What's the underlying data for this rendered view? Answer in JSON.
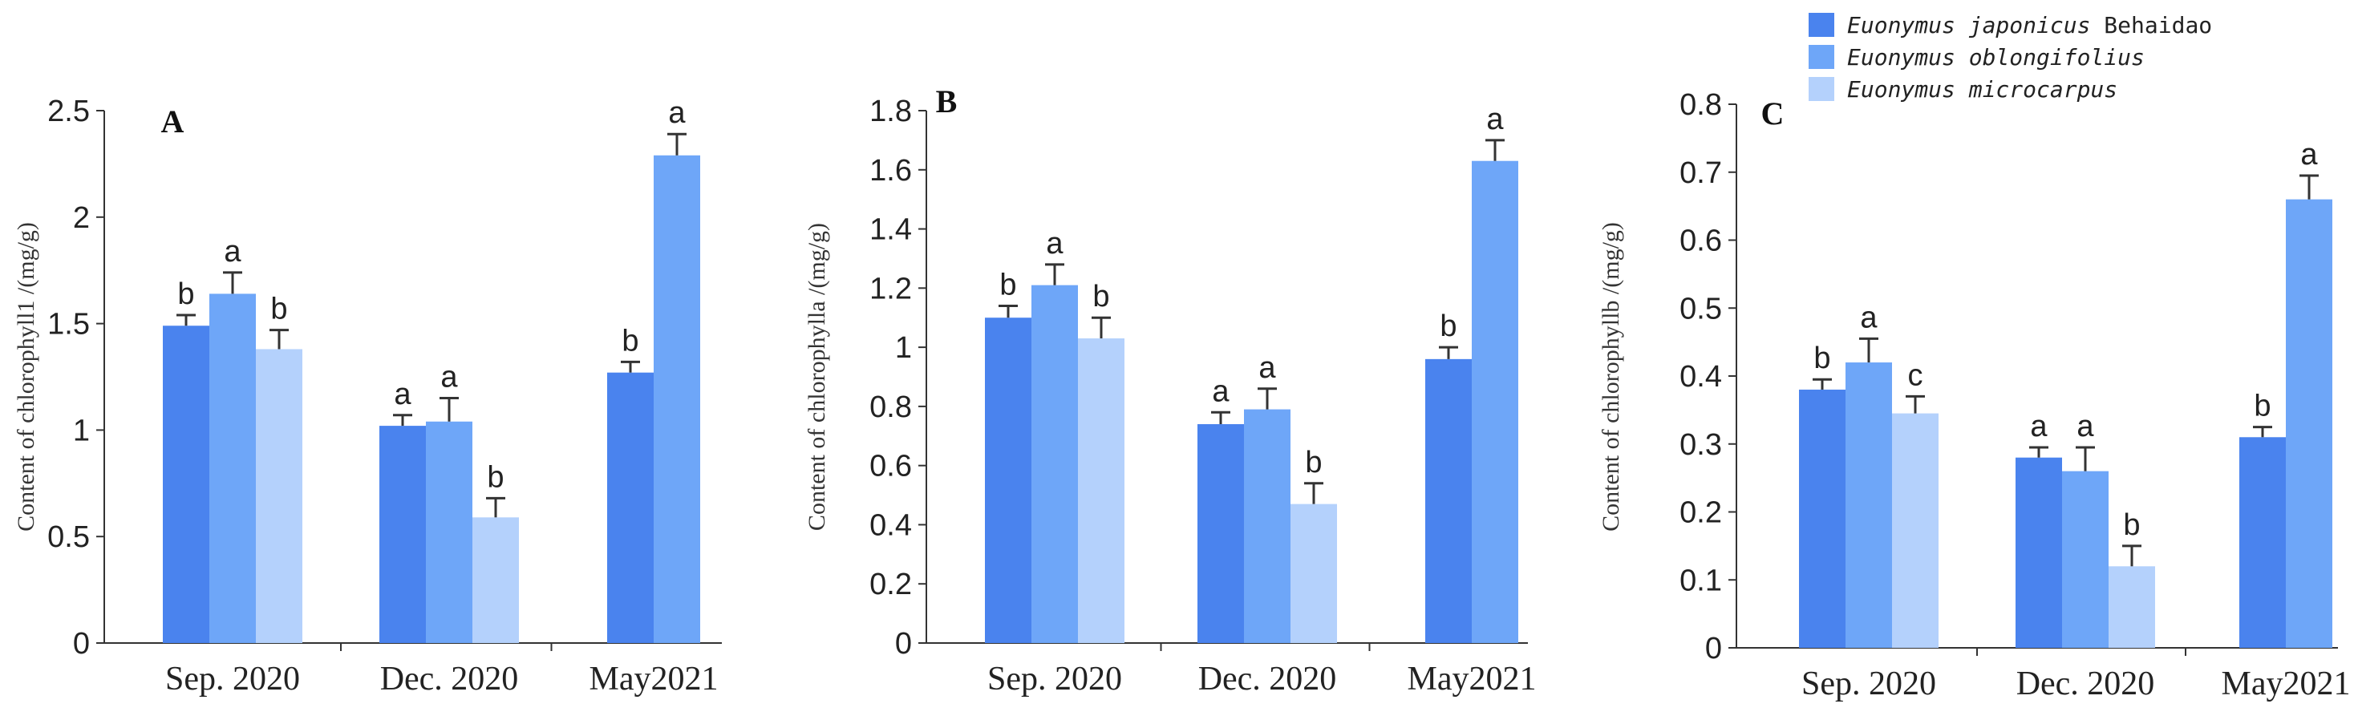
{
  "legend": {
    "items": [
      {
        "parts": [
          {
            "text": "Euonymus japonicus",
            "italic": true
          },
          {
            "text": " Behaidao",
            "italic": false
          }
        ],
        "color": "#4a83ee"
      },
      {
        "parts": [
          {
            "text": "Euonymus oblongifolius",
            "italic": true
          }
        ],
        "color": "#6ea6f8"
      },
      {
        "parts": [
          {
            "text": "Euonymus microcarpus",
            "italic": true
          }
        ],
        "color": "#b4d1fc"
      }
    ]
  },
  "colors": {
    "series_1": "#4a83ee",
    "series_2": "#6ea6f8",
    "series_3": "#b4d1fc",
    "axis": "#333333"
  },
  "chart_data": [
    {
      "type": "bar",
      "panel": "A",
      "ylabel": "Content of chlorophyll1 /(mg/g)",
      "categories": [
        "Sep. 2020",
        "Dec. 2020",
        "May2021"
      ],
      "ylim": [
        0,
        2.5
      ],
      "yticks": [
        0,
        0.5,
        1,
        1.5,
        2,
        2.5
      ],
      "ytick_labels": [
        "0",
        "0.5",
        "1",
        "1.5",
        "2",
        "2.5"
      ],
      "series": [
        {
          "values": [
            1.49,
            1.02,
            1.27
          ],
          "errors": [
            0.05,
            0.05,
            0.05
          ],
          "letters": [
            "b",
            "a",
            "b"
          ]
        },
        {
          "values": [
            1.64,
            1.04,
            2.29
          ],
          "errors": [
            0.1,
            0.11,
            0.1
          ],
          "letters": [
            "a",
            "a",
            "a"
          ]
        },
        {
          "values": [
            1.38,
            0.59,
            null
          ],
          "errors": [
            0.09,
            0.09,
            null
          ],
          "letters": [
            "b",
            "b",
            null
          ]
        }
      ]
    },
    {
      "type": "bar",
      "panel": "B",
      "ylabel": "Content of chlorophylla /(mg/g)",
      "categories": [
        "Sep. 2020",
        "Dec. 2020",
        "May2021"
      ],
      "ylim": [
        0,
        1.8
      ],
      "yticks": [
        0,
        0.2,
        0.4,
        0.6,
        0.8,
        1,
        1.2,
        1.4,
        1.6,
        1.8
      ],
      "ytick_labels": [
        "0",
        "0.2",
        "0.4",
        "0.6",
        "0.8",
        "1",
        "1.2",
        "1.4",
        "1.6",
        "1.8"
      ],
      "series": [
        {
          "values": [
            1.1,
            0.74,
            0.96
          ],
          "errors": [
            0.04,
            0.04,
            0.04
          ],
          "letters": [
            "b",
            "a",
            "b"
          ]
        },
        {
          "values": [
            1.21,
            0.79,
            1.63
          ],
          "errors": [
            0.07,
            0.07,
            0.07
          ],
          "letters": [
            "a",
            "a",
            "a"
          ]
        },
        {
          "values": [
            1.03,
            0.47,
            null
          ],
          "errors": [
            0.07,
            0.07,
            null
          ],
          "letters": [
            "b",
            "b",
            null
          ]
        }
      ]
    },
    {
      "type": "bar",
      "panel": "C",
      "ylabel": "Content of chlorophyllb /(mg/g)",
      "categories": [
        "Sep. 2020",
        "Dec. 2020",
        "May2021"
      ],
      "ylim": [
        0,
        0.8
      ],
      "yticks": [
        0,
        0.1,
        0.2,
        0.3,
        0.4,
        0.5,
        0.6,
        0.7,
        0.8
      ],
      "ytick_labels": [
        "0",
        "0.1",
        "0.2",
        "0.3",
        "0.4",
        "0.5",
        "0.6",
        "0.7",
        "0.8"
      ],
      "series": [
        {
          "values": [
            0.38,
            0.28,
            0.31
          ],
          "errors": [
            0.015,
            0.015,
            0.015
          ],
          "letters": [
            "b",
            "a",
            "b"
          ]
        },
        {
          "values": [
            0.42,
            0.26,
            0.66
          ],
          "errors": [
            0.035,
            0.035,
            0.035
          ],
          "letters": [
            "a",
            "a",
            "a"
          ]
        },
        {
          "values": [
            0.345,
            0.12,
            null
          ],
          "errors": [
            0.025,
            0.03,
            null
          ],
          "letters": [
            "c",
            "b",
            null
          ]
        }
      ]
    }
  ]
}
